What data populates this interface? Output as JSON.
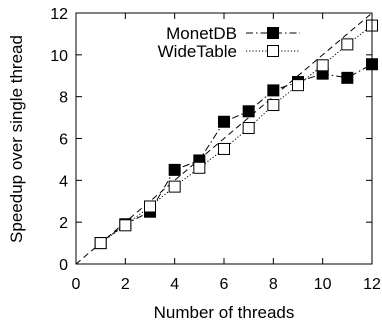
{
  "chart_data": {
    "type": "line",
    "title": "",
    "xlabel": "Number of threads",
    "ylabel": "Speedup over single thread",
    "xlim": [
      0,
      12
    ],
    "ylim": [
      0,
      12
    ],
    "xticks": [
      0,
      2,
      4,
      6,
      8,
      10,
      12
    ],
    "yticks": [
      0,
      2,
      4,
      6,
      8,
      10,
      12
    ],
    "grid": false,
    "legend_position": "top-left",
    "x": [
      1,
      2,
      3,
      4,
      5,
      6,
      7,
      8,
      9,
      10,
      11,
      12
    ],
    "series": [
      {
        "name": "MonetDB",
        "values": [
          1.0,
          1.9,
          2.5,
          4.5,
          4.95,
          6.8,
          7.3,
          8.3,
          8.7,
          9.1,
          8.9,
          9.55
        ],
        "marker": "filled-square",
        "line_style": "dash-dot",
        "color": "#000000"
      },
      {
        "name": "WideTable",
        "values": [
          1.0,
          1.85,
          2.75,
          3.7,
          4.6,
          5.5,
          6.5,
          7.6,
          8.55,
          9.5,
          10.5,
          11.4
        ],
        "marker": "open-square",
        "line_style": "dotted",
        "color": "#000000"
      }
    ],
    "reference_line": {
      "description": "linear",
      "x": [
        0,
        12
      ],
      "y": [
        0,
        12
      ],
      "line_style": "dashed"
    }
  }
}
